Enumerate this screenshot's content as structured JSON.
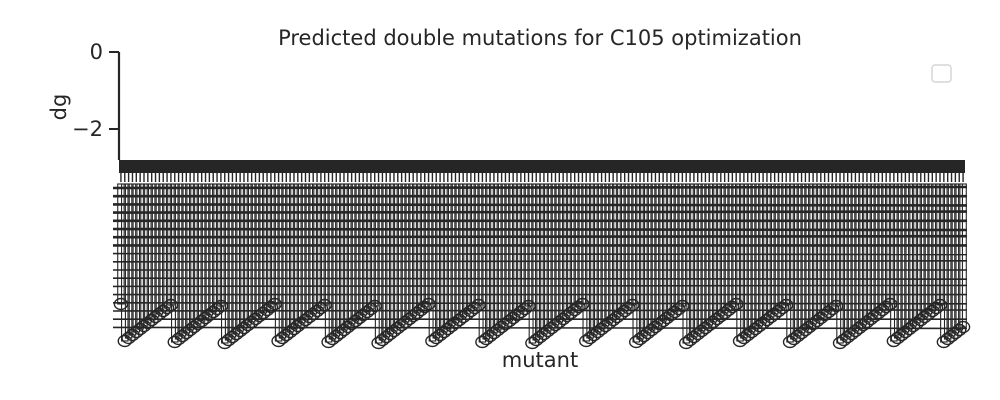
{
  "chart_data": {
    "type": "bar",
    "title": "Predicted double mutations for C105 optimization",
    "xlabel": "mutant",
    "ylabel": "dg",
    "ylim": [
      -2.9,
      0
    ],
    "yticks": [
      {
        "value": 0,
        "label": "0"
      },
      {
        "value": -2,
        "label": "−2"
      }
    ],
    "category_count": 220,
    "categories": [],
    "values": [],
    "grid": false,
    "legend_position": "top-right",
    "legend_entries": []
  }
}
